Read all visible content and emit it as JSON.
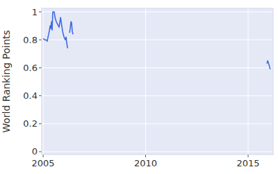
{
  "chart_data": {
    "type": "line",
    "ylabel": "World Ranking Points",
    "x": [
      2005.0,
      2005.07,
      2005.14,
      2005.2,
      2005.24,
      2005.27,
      2005.31,
      2005.34,
      2005.37,
      2005.41,
      2005.44,
      2005.47,
      2005.54,
      2005.58,
      2005.64,
      2005.71,
      2005.78,
      2005.85,
      2005.88,
      2005.95,
      2006.02,
      2006.08,
      2006.12,
      2006.15,
      2006.19,
      2006.24,
      2006.29,
      2006.32,
      2006.36,
      2006.39,
      2006.42,
      2006.46,
      2011.0,
      2015.92,
      2015.95,
      2015.98,
      2016.02,
      2016.08
    ],
    "values": [
      0.81,
      0.8,
      0.8,
      0.79,
      0.82,
      0.84,
      0.87,
      0.9,
      0.88,
      0.93,
      0.87,
      1.0,
      1.0,
      0.96,
      0.93,
      0.91,
      0.89,
      0.96,
      0.93,
      0.86,
      0.82,
      0.8,
      0.82,
      0.78,
      0.74,
      null,
      0.85,
      0.88,
      0.93,
      0.92,
      0.86,
      0.84,
      null,
      0.63,
      0.65,
      0.64,
      0.62,
      0.59
    ],
    "color": "#4169e1",
    "xlim": [
      2004.93,
      2016.22
    ],
    "ylim": [
      -0.02,
      1.025
    ],
    "xticks": [
      2005,
      2010,
      2015
    ],
    "yticks": [
      0,
      0.2,
      0.4,
      0.6,
      0.8,
      1
    ],
    "grid": true
  }
}
